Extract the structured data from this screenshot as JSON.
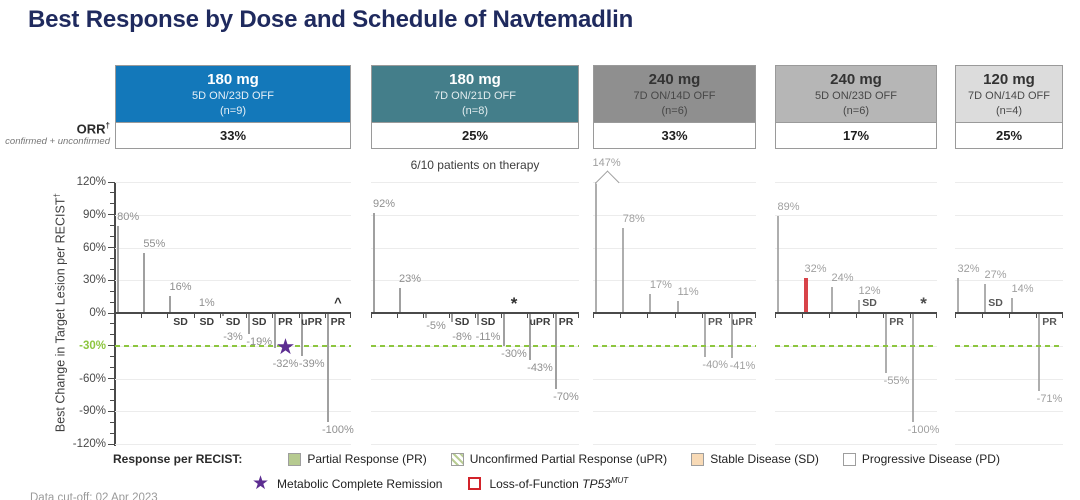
{
  "title": "Best Response by Dose and Schedule of Navtemadlin",
  "orr_label": {
    "main": "ORR",
    "sup": "†",
    "sub": "confirmed + unconfirmed"
  },
  "y_axis": {
    "title": "Best Change in Target Lesion per RECIST",
    "title_sup": "†",
    "ticks": [
      120,
      90,
      60,
      30,
      0,
      -30,
      -60,
      -90,
      -120
    ],
    "highlight_tick": -30,
    "unit": "%"
  },
  "colors": {
    "title_navy": "#1f2a5e",
    "pr_green": "#b6ca90",
    "upr_hatch_green": "#b9cd94",
    "sd_orange": "#f8dab6",
    "pd_white": "#ffffff",
    "bar_border_gray": "#a0a0a0",
    "threshold_green": "#8dc63f",
    "star_purple": "#5c2d91",
    "tp53_red": "#d2232a",
    "header_blue": "#1378ba",
    "header_teal": "#447e8a",
    "header_gray_dark": "#8f8f8f",
    "header_gray_mid": "#b6b6b6",
    "header_gray_light": "#dcdcdc"
  },
  "chart_data": {
    "type": "bar",
    "subtype": "waterfall",
    "ylabel": "Best Change in Target Lesion per RECIST†",
    "ylim": [
      -120,
      120
    ],
    "yticks": [
      120,
      90,
      60,
      30,
      0,
      -30,
      -60,
      -90,
      -120
    ],
    "threshold_line": -30,
    "grid": true,
    "panels": [
      {
        "dose": "180 mg",
        "schedule": "5D ON/23D OFF",
        "n": "(n=9)",
        "orr": "33%",
        "header_bg": "#1378ba",
        "header_text": "#ffffff",
        "header_text2": "#e6eff6",
        "bars": [
          {
            "value": 80,
            "type": "PD"
          },
          {
            "value": 55,
            "type": "PD"
          },
          {
            "value": 16,
            "type": "SD",
            "label": "SD",
            "label_pos": "below"
          },
          {
            "value": 1,
            "type": "SD",
            "label": "SD",
            "label_pos": "below"
          },
          {
            "value": -3,
            "type": "SD",
            "label": "SD",
            "label_pos": "below"
          },
          {
            "value": -19,
            "type": "SD",
            "label": "SD",
            "label_pos": "in"
          },
          {
            "value": -32,
            "type": "PR",
            "label": "PR",
            "label_pos": "in",
            "marker": "star"
          },
          {
            "value": -39,
            "type": "uPR",
            "label": "uPR",
            "label_pos": "in"
          },
          {
            "value": -100,
            "type": "PR",
            "label": "PR",
            "label_pos": "in",
            "marker": "caret"
          }
        ]
      },
      {
        "dose": "180 mg",
        "schedule": "7D ON/21D OFF",
        "n": "(n=8)",
        "orr": "25%",
        "header_bg": "#447e8a",
        "header_text": "#ffffff",
        "header_text2": "#e2ecee",
        "note": "6/10 patients on therapy",
        "bars": [
          {
            "value": 92,
            "type": "PD"
          },
          {
            "value": 23,
            "type": "PD"
          },
          {
            "value": -5,
            "type": "PD"
          },
          {
            "value": -8,
            "type": "SD",
            "label": "SD",
            "label_pos": "in"
          },
          {
            "value": -11,
            "type": "SD",
            "label": "SD",
            "label_pos": "in"
          },
          {
            "value": -30,
            "type": "PD",
            "marker": "asterisk"
          },
          {
            "value": -43,
            "type": "uPR",
            "label": "uPR",
            "label_pos": "in"
          },
          {
            "value": -70,
            "type": "PR",
            "label": "PR",
            "label_pos": "in"
          }
        ]
      },
      {
        "dose": "240 mg",
        "schedule": "7D ON/14D OFF",
        "n": "(n=6)",
        "orr": "33%",
        "header_bg": "#8f8f8f",
        "header_text": "#333333",
        "header_text2": "#474747",
        "bars": [
          {
            "value": 147,
            "type": "PD",
            "overflow": true
          },
          {
            "value": 78,
            "type": "PD"
          },
          {
            "value": 17,
            "type": "PD"
          },
          {
            "value": 11,
            "type": "PD"
          },
          {
            "value": -40,
            "type": "PR",
            "label": "PR",
            "label_pos": "in"
          },
          {
            "value": -41,
            "type": "uPR",
            "label": "uPR",
            "label_pos": "in"
          }
        ]
      },
      {
        "dose": "240 mg",
        "schedule": "5D ON/23D OFF",
        "n": "(n=6)",
        "orr": "17%",
        "header_bg": "#b6b6b6",
        "header_text": "#333333",
        "header_text2": "#474747",
        "bars": [
          {
            "value": 89,
            "type": "PD"
          },
          {
            "value": 32,
            "type": "PD",
            "tp53": true
          },
          {
            "value": 24,
            "type": "PD"
          },
          {
            "value": 12,
            "type": "SD",
            "label": "SD",
            "label_pos": "in"
          },
          {
            "value": -55,
            "type": "PR",
            "label": "PR",
            "label_pos": "in"
          },
          {
            "value": -100,
            "type": "PD",
            "marker": "asterisk"
          }
        ]
      },
      {
        "dose": "120 mg",
        "schedule": "7D ON/14D OFF",
        "n": "(n=4)",
        "orr": "25%",
        "header_bg": "#dcdcdc",
        "header_text": "#333333",
        "header_text2": "#4a4a4a",
        "bars": [
          {
            "value": 32,
            "type": "PD"
          },
          {
            "value": 27,
            "type": "SD",
            "label": "SD",
            "label_pos": "in"
          },
          {
            "value": 14,
            "type": "PD"
          },
          {
            "value": -71,
            "type": "PR",
            "label": "PR",
            "label_pos": "in"
          }
        ]
      }
    ]
  },
  "legend": {
    "heading": "Response per RECIST:",
    "items": [
      {
        "key": "PR",
        "label": "Partial Response (PR)"
      },
      {
        "key": "uPR",
        "label": "Unconfirmed Partial Response (uPR)"
      },
      {
        "key": "SD",
        "label": "Stable Disease (SD)"
      },
      {
        "key": "PD",
        "label": "Progressive Disease (PD)"
      }
    ],
    "extra": [
      {
        "icon": "star",
        "glyph": "★",
        "label": "Metabolic Complete Remission"
      },
      {
        "icon": "red-box",
        "label_prefix": "Loss-of-Function ",
        "label_gene": "TP53",
        "label_sup": "MUT"
      }
    ]
  },
  "footer": "Data cut-off: 02 Apr 2023"
}
